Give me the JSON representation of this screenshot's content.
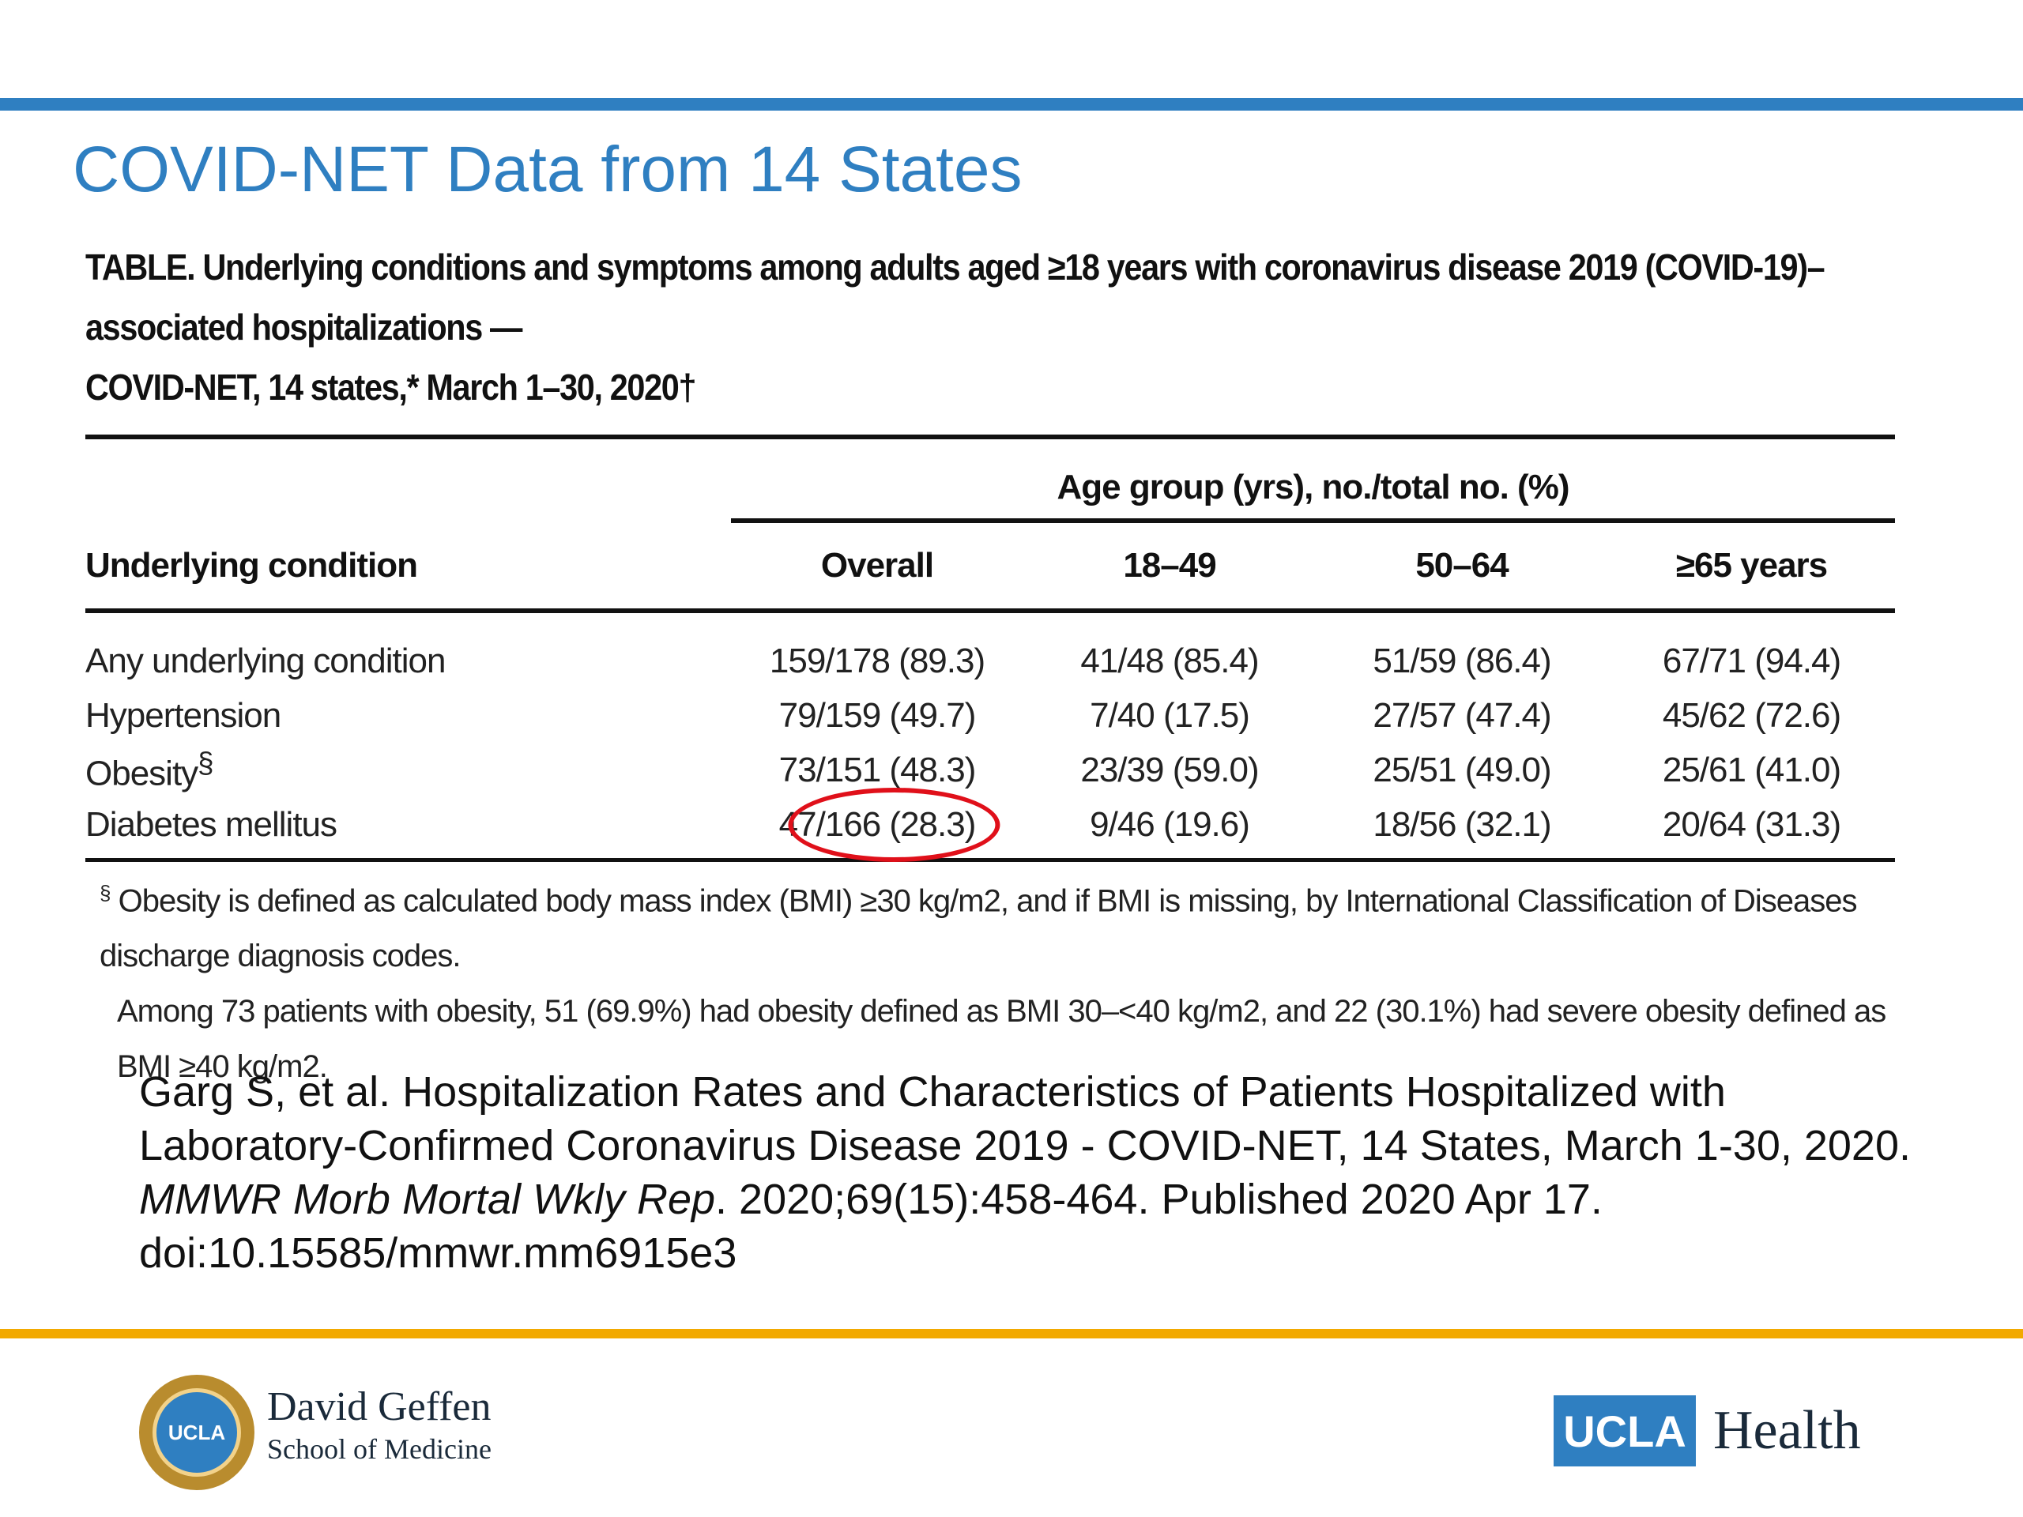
{
  "slide": {
    "title": "COVID-NET Data from 14 States"
  },
  "table": {
    "caption_line1": "TABLE. Underlying conditions and symptoms among adults aged ≥18 years with coronavirus disease 2019 (COVID-19)–associated hospitalizations —",
    "caption_line2": "COVID-NET, 14 states,* March 1–30, 2020†",
    "spanner": "Age group (yrs), no./total no. (%)",
    "headers": {
      "condition": "Underlying condition",
      "overall": "Overall",
      "age_18_49": "18–49",
      "age_50_64": "50–64",
      "age_65_plus": "≥65 years"
    },
    "rows": [
      {
        "condition": "Any underlying condition",
        "overall": "159/178 (89.3)",
        "age_18_49": "41/48 (85.4)",
        "age_50_64": "51/59 (86.4)",
        "age_65_plus": "67/71 (94.4)"
      },
      {
        "condition": "Hypertension",
        "overall": "79/159 (49.7)",
        "age_18_49": "7/40 (17.5)",
        "age_50_64": "27/57 (47.4)",
        "age_65_plus": "45/62 (72.6)"
      },
      {
        "condition": "Obesity",
        "condition_sup": "§",
        "overall": "73/151 (48.3)",
        "age_18_49": "23/39 (59.0)",
        "age_50_64": "25/51 (49.0)",
        "age_65_plus": "25/61 (41.0)"
      },
      {
        "condition": "Diabetes mellitus",
        "overall": "47/166 (28.3)",
        "age_18_49": "9/46 (19.6)",
        "age_50_64": "18/56 (32.1)",
        "age_65_plus": "20/64 (31.3)"
      }
    ],
    "footnote": {
      "marker": "§",
      "line1": " Obesity is defined as calculated body mass index (BMI) ≥30 kg/m2, and if BMI is missing, by International Classification of Diseases discharge diagnosis codes.",
      "line2": "Among 73 patients with obesity, 51 (69.9%) had obesity defined as BMI 30–<40 kg/m2, and 22 (30.1%) had severe obesity defined as BMI ≥40 kg/m2."
    },
    "highlight_color": "#e0101a"
  },
  "citation": {
    "part1": "Garg S, et al. Hospitalization Rates and Characteristics of Patients Hospitalized with Laboratory-Confirmed Coronavirus Disease 2019 - COVID-NET, 14 States, March 1-30, 2020. ",
    "journal": "MMWR Morb Mortal Wkly Rep",
    "part2": ". 2020;69(15):458-464. Published 2020 Apr 17. doi:10.15585/mmwr.mm6915e3"
  },
  "footer": {
    "seal_text": "UCLA",
    "school_line1": "David Geffen",
    "school_line2": "School of Medicine",
    "ucla_box": "UCLA",
    "health": "Health"
  },
  "colors": {
    "title_blue": "#2f7fc1",
    "top_rule": "#2f7fc1",
    "bottom_rule": "#f2a900"
  }
}
